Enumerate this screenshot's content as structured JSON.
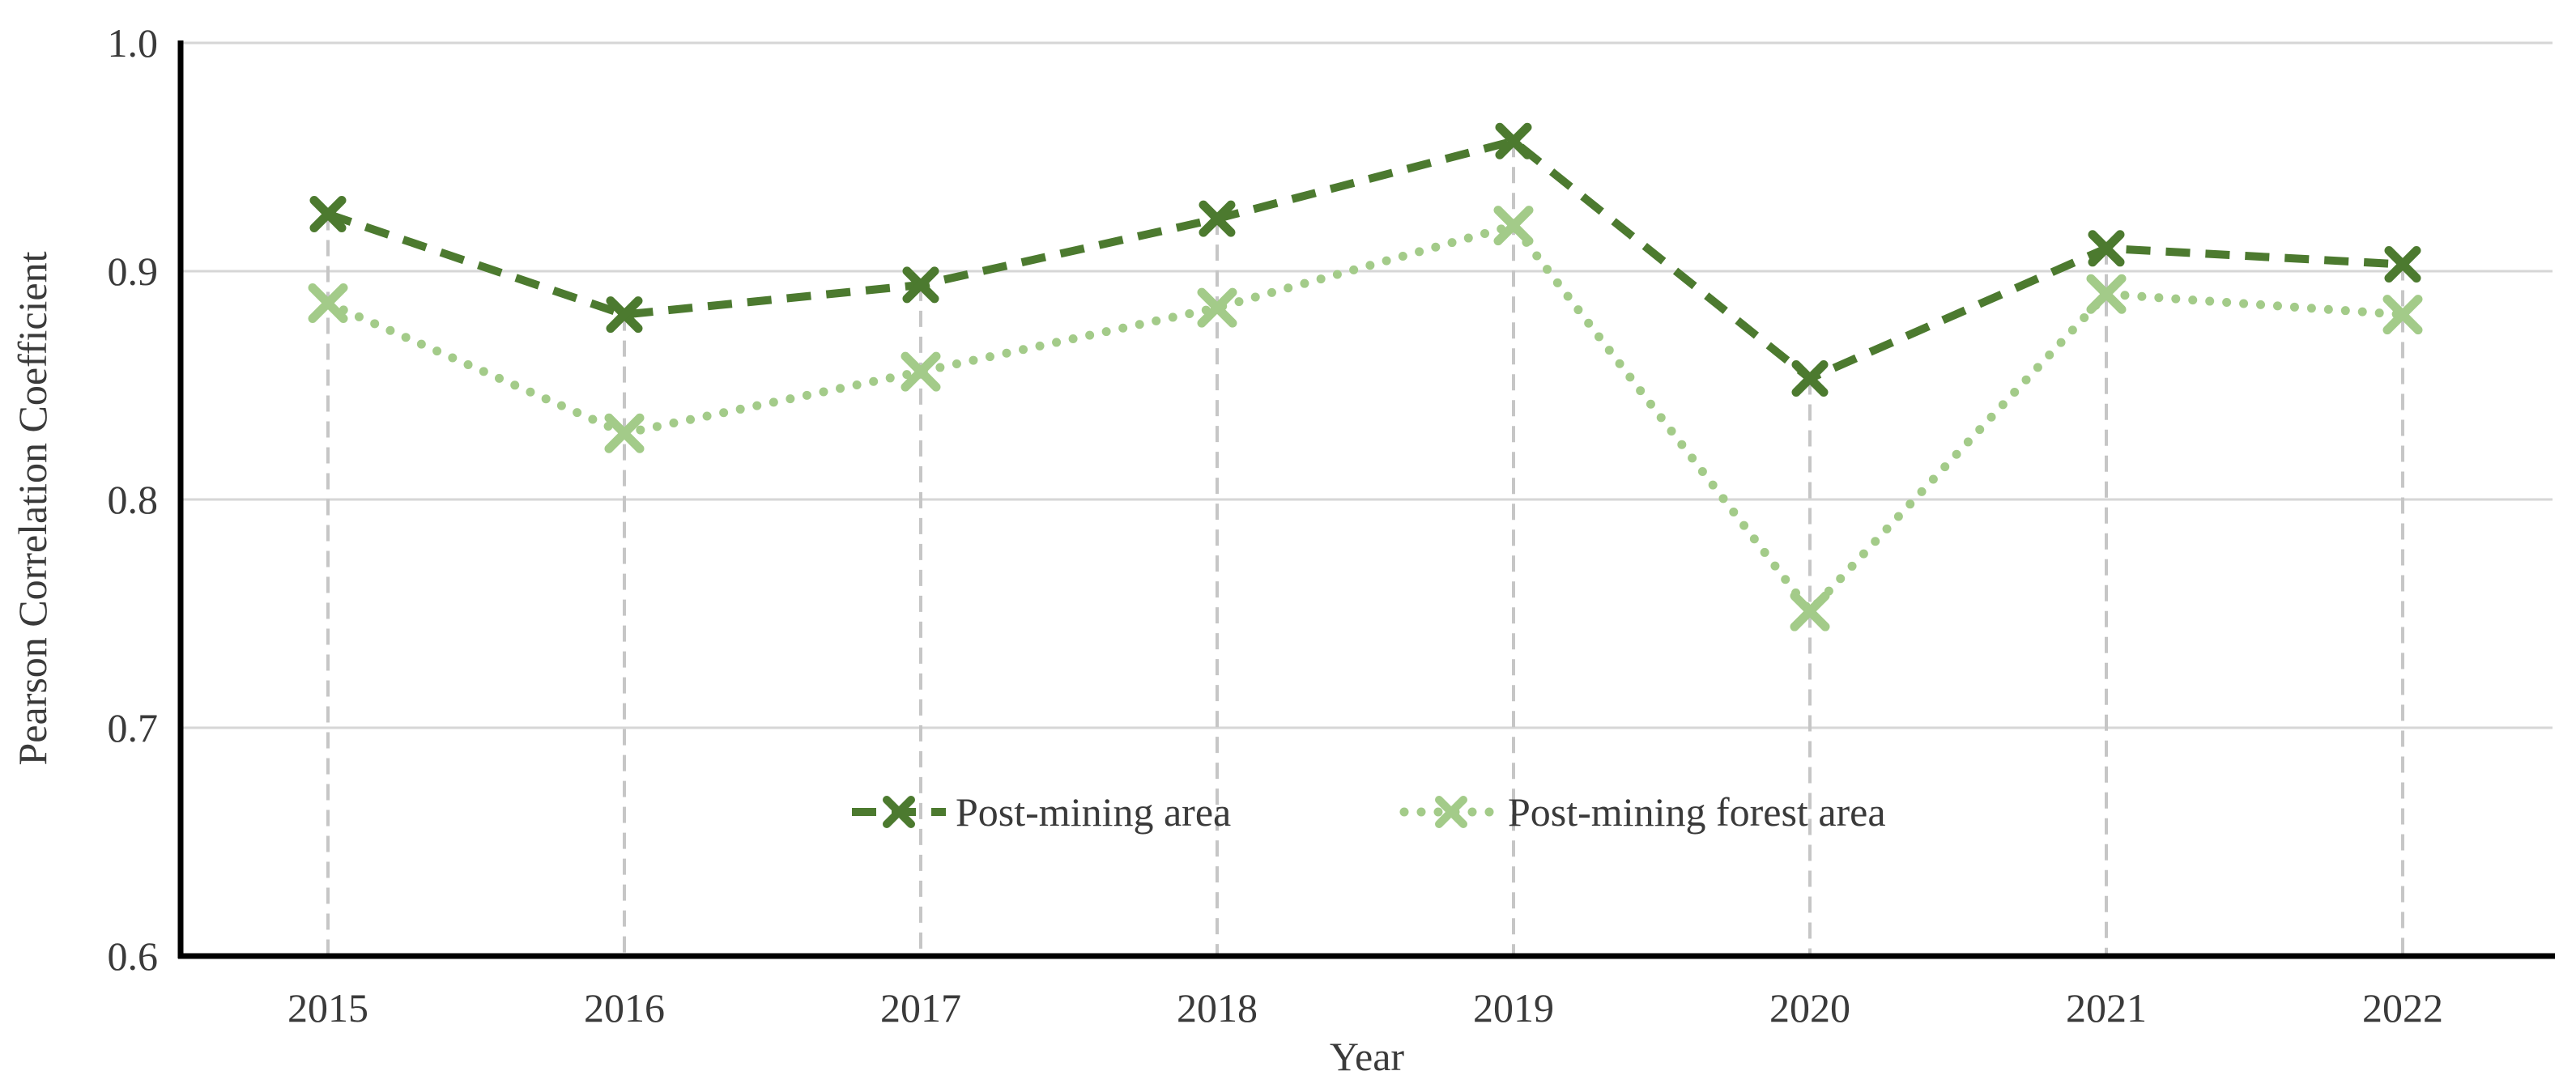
{
  "figure": {
    "background": "#ffffff"
  },
  "chart_data": {
    "type": "line",
    "categories": [
      "2015",
      "2016",
      "2017",
      "2018",
      "2019",
      "2020",
      "2021",
      "2022"
    ],
    "series": [
      {
        "name": "Post-mining area",
        "values": [
          0.925,
          0.881,
          0.894,
          0.923,
          0.957,
          0.853,
          0.91,
          0.903
        ],
        "color": "#4c7a2f",
        "line_style": "dashed",
        "marker": "x"
      },
      {
        "name": "Post-mining forest area",
        "values": [
          0.886,
          0.829,
          0.856,
          0.884,
          0.92,
          0.751,
          0.89,
          0.881
        ],
        "color": "#a3cb89",
        "line_style": "dotted",
        "marker": "x"
      }
    ],
    "title": "",
    "xlabel": "Year",
    "ylabel": "Pearson Correlation Coefficient",
    "ylim": [
      0.6,
      1.0
    ],
    "yticks": [
      1.0,
      0.9,
      0.8,
      0.7,
      0.6
    ],
    "ytick_labels": [
      "1.0",
      "0.9",
      "0.8",
      "0.7",
      "0.6"
    ],
    "grid": {
      "horizontal_gridlines": true,
      "vertical_drop_lines": "dashed, from upper series point down to x-axis at each year"
    },
    "legend_position": "inside-bottom-center"
  },
  "style_colors": {
    "axis_line": "#000000",
    "gridline": "#d6d6d6",
    "drop_line": "#c6c6c6",
    "text": "#3a3a3a"
  }
}
